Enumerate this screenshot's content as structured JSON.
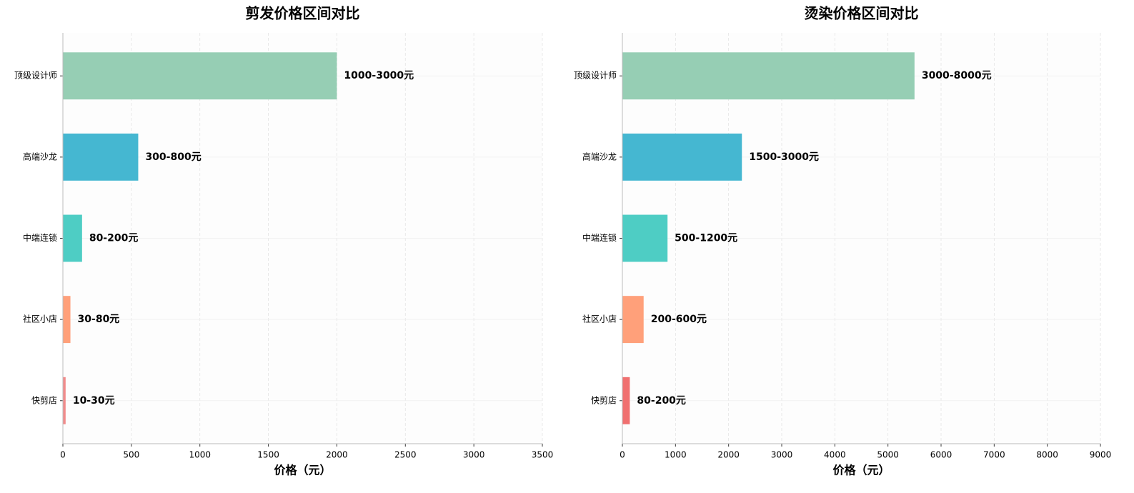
{
  "chart_data": [
    {
      "type": "bar",
      "orientation": "horizontal",
      "title": "剪发价格区间对比",
      "x_label": "价格（元）",
      "categories": [
        "快剪店",
        "社区小店",
        "中端连锁",
        "高端沙龙",
        "顶级设计师"
      ],
      "values": [
        20,
        55,
        140,
        550,
        2000
      ],
      "value_labels": [
        "10-30元",
        "30-80元",
        "80-200元",
        "300-800元",
        "1000-3000元"
      ],
      "colors": [
        "#f28b8b",
        "#ffa07a",
        "#4ecdc4",
        "#45b7d1",
        "#96ceb4"
      ],
      "xlim": [
        0,
        3500
      ],
      "xticks": [
        0,
        500,
        1000,
        1500,
        2000,
        2500,
        3000,
        3500
      ],
      "grid": true
    },
    {
      "type": "bar",
      "orientation": "horizontal",
      "title": "烫染价格区间对比",
      "x_label": "价格（元）",
      "categories": [
        "快剪店",
        "社区小店",
        "中端连锁",
        "高端沙龙",
        "顶级设计师"
      ],
      "values": [
        140,
        400,
        850,
        2250,
        5500
      ],
      "value_labels": [
        "80-200元",
        "200-600元",
        "500-1200元",
        "1500-3000元",
        "3000-8000元"
      ],
      "colors": [
        "#f07070",
        "#ffa07a",
        "#4ecdc4",
        "#45b7d1",
        "#96ceb4"
      ],
      "xlim": [
        0,
        9000
      ],
      "xticks": [
        0,
        1000,
        2000,
        3000,
        4000,
        5000,
        6000,
        7000,
        8000,
        9000
      ],
      "grid": true
    }
  ]
}
